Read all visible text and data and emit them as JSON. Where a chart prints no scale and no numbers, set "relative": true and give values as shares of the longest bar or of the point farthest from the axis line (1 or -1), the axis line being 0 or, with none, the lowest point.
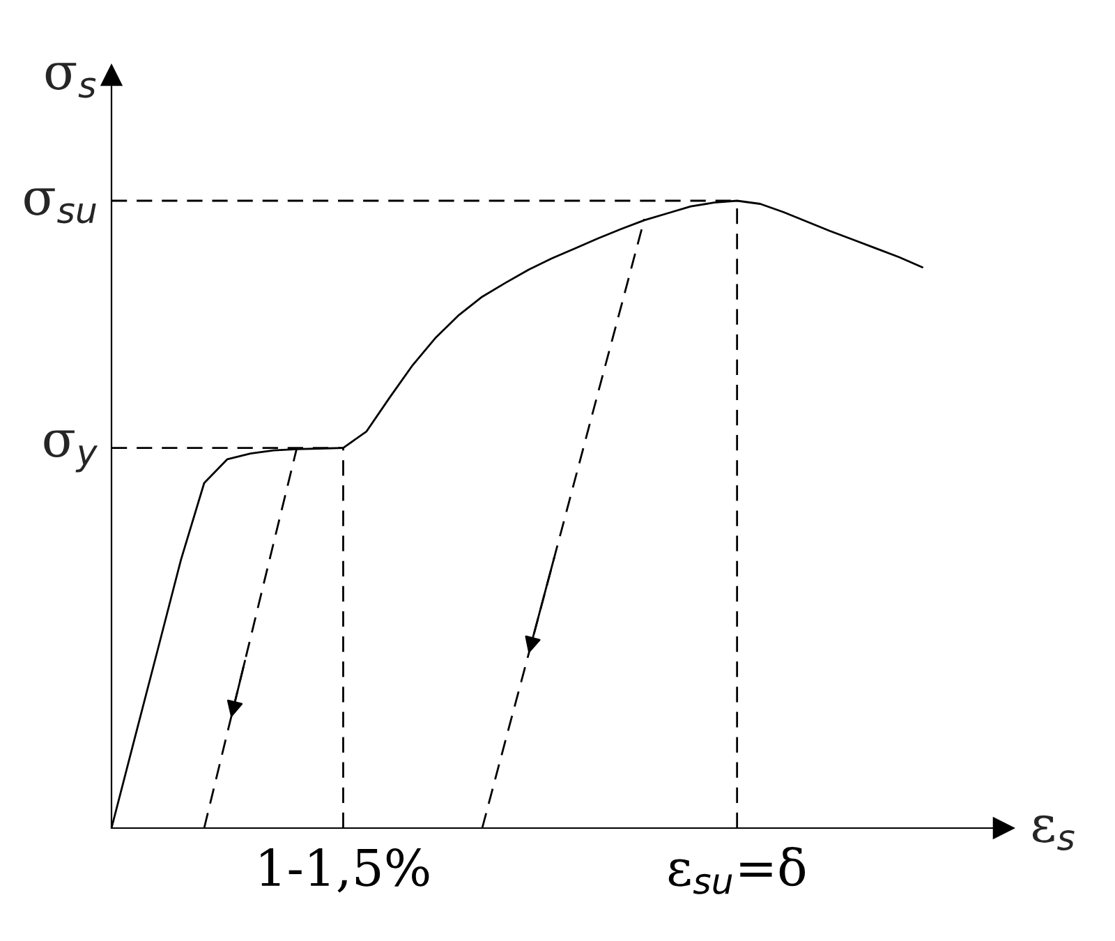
{
  "chart_data": {
    "type": "line",
    "relative": true,
    "xlabel": "ε$_{s}$",
    "ylabel": "σ$_{s}$",
    "grid": false,
    "legend": false,
    "marker": "none",
    "categories": [
      null,
      null,
      null,
      null,
      null,
      null,
      null,
      null,
      null,
      null,
      "1-1,5%",
      null,
      null,
      null,
      null,
      null,
      null,
      null,
      null,
      null,
      null,
      null,
      null,
      null,
      null,
      null,
      null,
      "ε$_{su}$=δ",
      null,
      null,
      null,
      null,
      null,
      null,
      null,
      null
    ],
    "series": [
      {
        "color": "#000000",
        "line_style": "solid",
        "values": [
          0,
          0.143,
          0.285,
          0.428,
          0.55,
          0.588,
          0.597,
          0.602,
          0.604,
          0.605,
          0.606,
          0.632,
          0.686,
          0.738,
          0.782,
          0.818,
          0.847,
          0.869,
          0.89,
          0.908,
          0.924,
          0.94,
          0.955,
          0.969,
          0.98,
          0.991,
          0.997,
          1.0,
          0.995,
          0.982,
          0.967,
          0.952,
          0.938,
          0.924,
          0.91,
          0.894
        ]
      },
      {
        "color": "#000000",
        "line_style": "dashed",
        "values": [
          null,
          null,
          null,
          null,
          0,
          0.152,
          0.303,
          0.455,
          0.606,
          null,
          null,
          null,
          null,
          null,
          null,
          null,
          null,
          null,
          null,
          null,
          null,
          null,
          null,
          null,
          null,
          null,
          null,
          null,
          null,
          null,
          null,
          null,
          null,
          null,
          null,
          null
        ]
      },
      {
        "color": "#000000",
        "line_style": "dashed",
        "values": [
          null,
          null,
          null,
          null,
          null,
          null,
          null,
          null,
          null,
          null,
          null,
          null,
          null,
          null,
          null,
          null,
          0,
          0.139,
          0.277,
          0.416,
          0.555,
          0.694,
          0.832,
          0.971,
          null,
          null,
          null,
          null,
          null,
          null,
          null,
          null,
          null,
          null,
          null,
          null
        ]
      }
    ],
    "ref_lines": [
      {
        "axis": "y",
        "value": 0.606,
        "label": "σ$_{y}$",
        "line_style": "dashed",
        "color": "#000000"
      },
      {
        "axis": "y",
        "value": 1.0,
        "label": "σ$_{su}$",
        "line_style": "dashed",
        "color": "#000000"
      },
      {
        "axis": "x",
        "value": "1-1,5%",
        "line_style": "dashed",
        "color": "#000000"
      },
      {
        "axis": "x",
        "value": "ε$_{su}$=δ",
        "line_style": "dashed",
        "color": "#000000"
      }
    ]
  }
}
